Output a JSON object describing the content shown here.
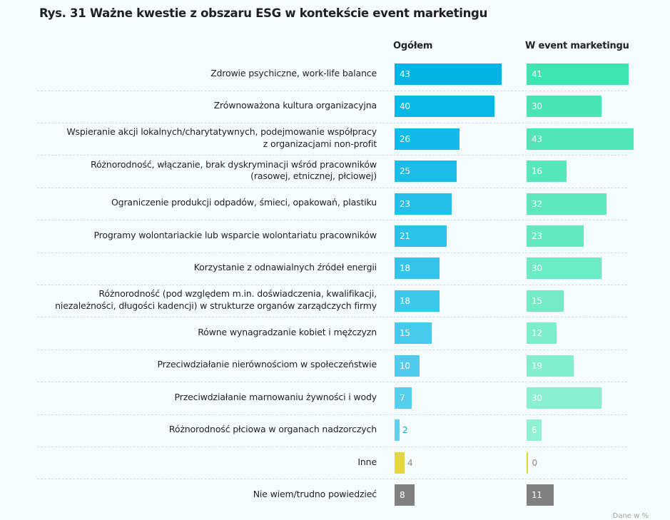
{
  "title": "Rys. 31 Ważne kwestie z obszaru ESG w kontekście event marketingu",
  "footnote": "Dane w %",
  "chart_data": {
    "type": "bar",
    "orientation": "horizontal",
    "title": "Rys. 31 Ważne kwestie z obszaru ESG w kontekście event marketingu",
    "unit": "%",
    "xlim": [
      0,
      45
    ],
    "grid": false,
    "legend": "none",
    "categories": [
      "Zdrowie psychiczne, work-life balance",
      "Zrównoważona kultura organizacyjna",
      "Wspieranie akcji lokalnych/charytatywnych, podejmowanie współpracy\nz organizacjami non-profit",
      "Różnorodność, włączanie, brak dyskryminacji wśród pracowników\n(rasowej, etnicznej, płciowej)",
      "Ograniczenie produkcji odpadów, śmieci, opakowań, plastiku",
      "Programy wolontariackie lub wsparcie wolontariatu pracowników",
      "Korzystanie z odnawialnych źródeł energii",
      "Różnorodność (pod względem m.in. doświadczenia, kwalifikacji,\nniezależności, długości kadencji) w strukturze organów zarządczych firmy",
      "Równe wynagradzanie kobiet i mężczyzn",
      "Przeciwdziałanie nierównościom w społeczeństwie",
      "Przeciwdziałanie marnowaniu żywności i wody",
      "Różnorodność płciowa w organach nadzorczych",
      "Inne",
      "Nie wiem/trudno powiedzieć"
    ],
    "series": [
      {
        "name": "Ogółem",
        "values": [
          43,
          40,
          26,
          25,
          23,
          21,
          18,
          18,
          15,
          10,
          7,
          2,
          4,
          8
        ]
      },
      {
        "name": "W event marketingu",
        "values": [
          41,
          30,
          43,
          16,
          32,
          23,
          30,
          15,
          12,
          19,
          30,
          6,
          0,
          11
        ]
      }
    ],
    "colors": {
      "ogolem_start": "#00b5e6",
      "ogolem_end": "#5fd1ef",
      "event_start": "#3fe4b0",
      "event_end": "#90f0d2",
      "inne": "#e2d63c",
      "nie_wiem": "#808080",
      "value_label_inside": "#ffffff",
      "value_label_outside": "#8a8a8a"
    }
  }
}
